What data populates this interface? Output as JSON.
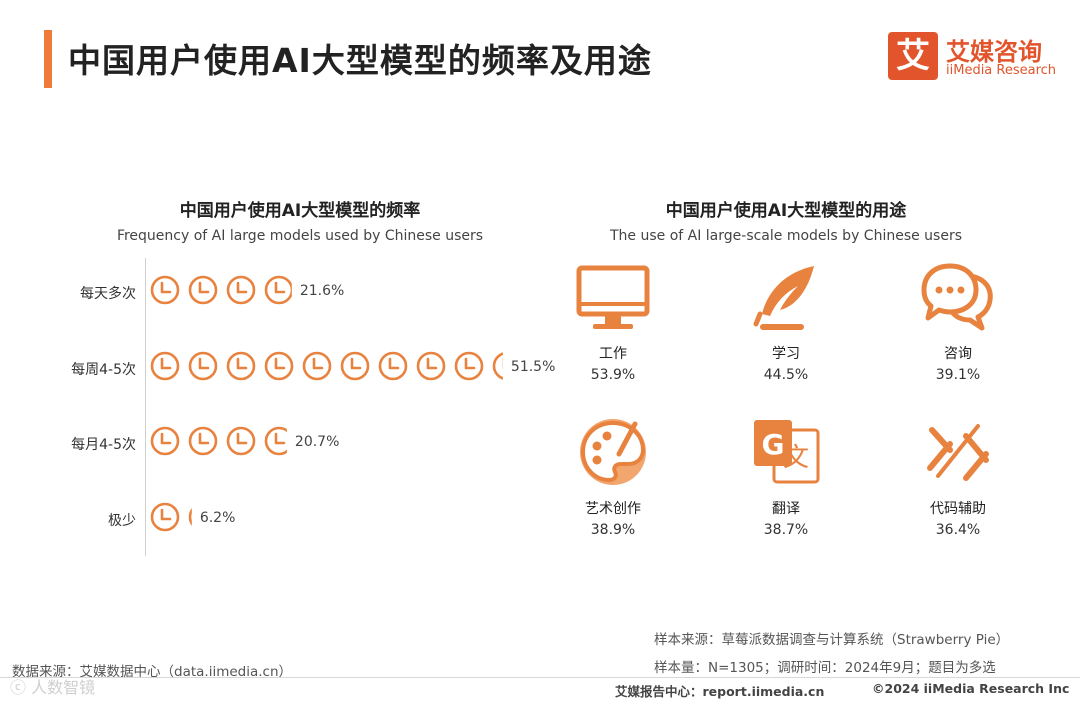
{
  "header": {
    "title": "中国用户使用AI大型模型的频率及用途",
    "logo_mark": "艾",
    "logo_cn": "艾媒咨询",
    "logo_en": "iiMedia Research"
  },
  "colors": {
    "accent": "#ee7b3c",
    "brand": "#e2542b",
    "icon": "#e8823f"
  },
  "chart_data": [
    {
      "type": "bar",
      "title": "中国用户使用AI大型模型的频率",
      "subtitle": "Frequency of AI large models used by Chinese users",
      "categories": [
        "每天多次",
        "每周4-5次",
        "每月4-5次",
        "极少"
      ],
      "values": [
        21.6,
        51.5,
        20.7,
        6.2
      ],
      "value_labels": [
        "21.6%",
        "51.5%",
        "20.7%",
        "6.2%"
      ],
      "unit": "%",
      "mark": "clock-icon",
      "units_per_icon": 5.5
    },
    {
      "type": "table",
      "title": "中国用户使用AI大型模型的用途",
      "subtitle": "The use of AI large-scale models by Chinese users",
      "items": [
        {
          "label": "工作",
          "value": "53.9%",
          "icon": "monitor-icon"
        },
        {
          "label": "学习",
          "value": "44.5%",
          "icon": "quill-pen-icon"
        },
        {
          "label": "咨询",
          "value": "39.1%",
          "icon": "chat-bubbles-icon"
        },
        {
          "label": "艺术创作",
          "value": "38.9%",
          "icon": "palette-icon"
        },
        {
          "label": "翻译",
          "value": "38.7%",
          "icon": "translate-icon"
        },
        {
          "label": "代码辅助",
          "value": "36.4%",
          "icon": "code-brackets-icon"
        }
      ]
    }
  ],
  "source": {
    "sample_source": "样本来源：草莓派数据调查与计算系统（Strawberry Pie）",
    "sample_info": "样本量：N=1305；调研时间：2024年9月；题目为多选",
    "data_source": "数据来源：艾媒数据中心（data.iimedia.cn）"
  },
  "footer": {
    "report_center": "艾媒报告中心：report.iimedia.cn",
    "copyright": "©2024  iiMedia Research  Inc",
    "watermark": "ⓒ 人数智镜"
  }
}
